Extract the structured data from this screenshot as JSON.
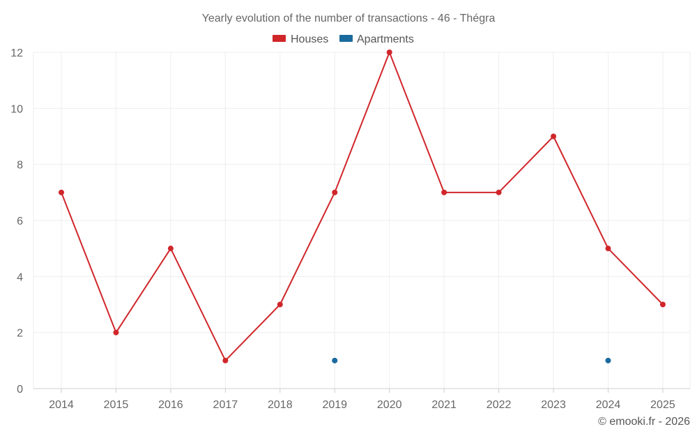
{
  "chart_data": {
    "type": "line",
    "title": "Yearly evolution of the number of transactions - 46 - Thégra",
    "categories": [
      "2014",
      "2015",
      "2016",
      "2017",
      "2018",
      "2019",
      "2020",
      "2021",
      "2022",
      "2023",
      "2024",
      "2025"
    ],
    "ylim": [
      0,
      12
    ],
    "yticks": [
      "0",
      "2",
      "4",
      "6",
      "8",
      "10",
      "12"
    ],
    "grid": true,
    "legend_position": "top-center",
    "series": [
      {
        "name": "Houses",
        "color": "#d0262a",
        "values": [
          7,
          2,
          5,
          1,
          3,
          7,
          12,
          7,
          7,
          9,
          5,
          3
        ]
      },
      {
        "name": "Apartments",
        "color": "#1a6a9e",
        "values": [
          null,
          null,
          null,
          null,
          null,
          1,
          null,
          null,
          null,
          null,
          1,
          null
        ]
      }
    ],
    "footer": "© emooki.fr - 2026"
  }
}
